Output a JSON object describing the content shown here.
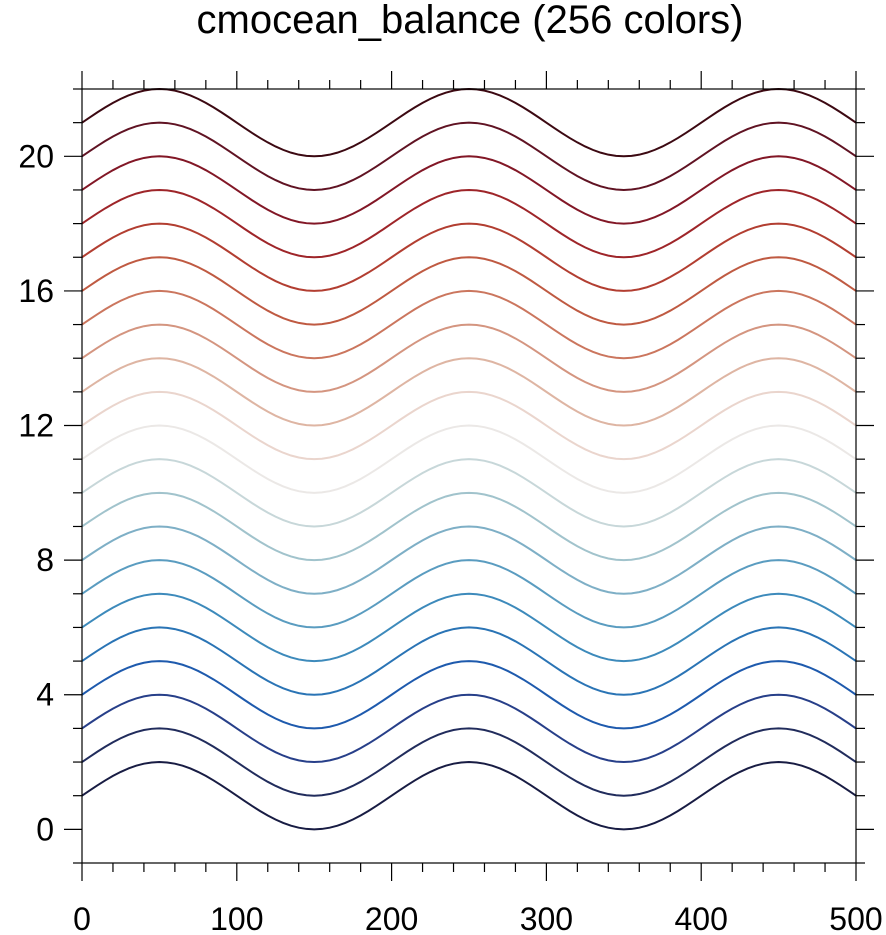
{
  "chart_data": {
    "type": "line",
    "title": "cmocean_balance (256 colors)",
    "xlabel": "",
    "ylabel": "",
    "xlim": [
      0,
      500
    ],
    "ylim": [
      -1,
      22
    ],
    "x_ticks": [
      0,
      100,
      200,
      300,
      400,
      500
    ],
    "x_tick_labels": [
      "0",
      "100",
      "200",
      "300",
      "400",
      "500"
    ],
    "x_minor_step": 20,
    "y_ticks": [
      0,
      4,
      8,
      12,
      16,
      20
    ],
    "y_tick_labels": [
      "0",
      "4",
      "8",
      "12",
      "16",
      "20"
    ],
    "y_minor_step": 1,
    "grid": false,
    "legend": "none",
    "curve_shape": "y = offset + sin(2*pi*x/200)",
    "sample_step": 5,
    "series": [
      {
        "offset": 1,
        "color": "#181c43"
      },
      {
        "offset": 2,
        "color": "#212c5c"
      },
      {
        "offset": 3,
        "color": "#273f89"
      },
      {
        "offset": 4,
        "color": "#1e5aad"
      },
      {
        "offset": 5,
        "color": "#2a74b5"
      },
      {
        "offset": 6,
        "color": "#3d8abb"
      },
      {
        "offset": 7,
        "color": "#5a9cc0"
      },
      {
        "offset": 8,
        "color": "#7eafc6"
      },
      {
        "offset": 9,
        "color": "#a1c3cc"
      },
      {
        "offset": 10,
        "color": "#c7d7d9"
      },
      {
        "offset": 11,
        "color": "#ebe8e6"
      },
      {
        "offset": 12,
        "color": "#ead5cd"
      },
      {
        "offset": 13,
        "color": "#deb5a3"
      },
      {
        "offset": 14,
        "color": "#d49580"
      },
      {
        "offset": 15,
        "color": "#cb765e"
      },
      {
        "offset": 16,
        "color": "#bf5a42"
      },
      {
        "offset": 17,
        "color": "#b23e31"
      },
      {
        "offset": 18,
        "color": "#9e2529"
      },
      {
        "offset": 19,
        "color": "#821726"
      },
      {
        "offset": 20,
        "color": "#601323"
      },
      {
        "offset": 21,
        "color": "#3c0912"
      }
    ]
  }
}
